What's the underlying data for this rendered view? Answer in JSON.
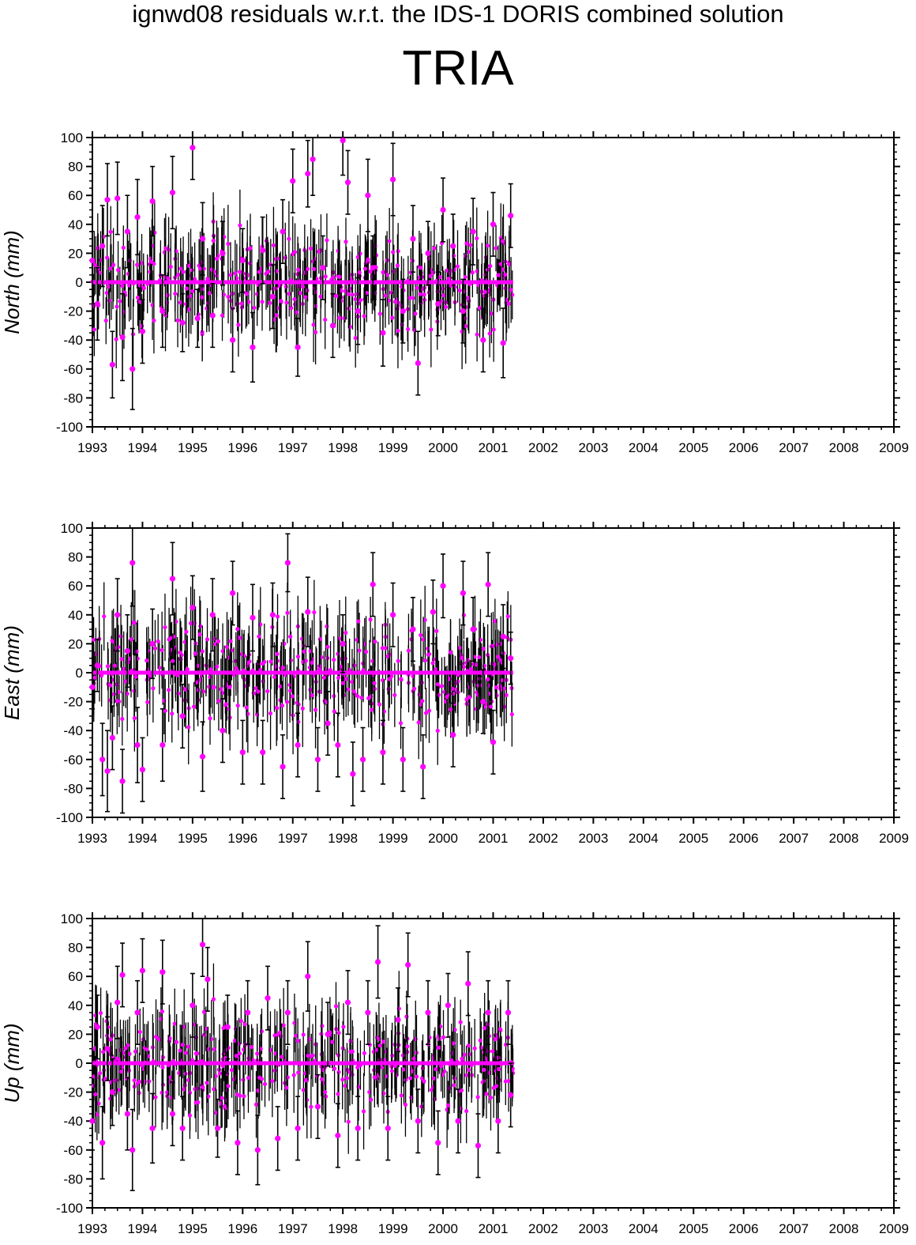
{
  "header": {
    "subtitle": "ignwd08 residuals w.r.t. the IDS-1 DORIS combined solution",
    "station": "TRIA"
  },
  "colors": {
    "marker": "#ff00ff",
    "errorbar": "#000000",
    "axis": "#000000"
  },
  "chart_data": [
    {
      "type": "scatter",
      "ylabel": "North (mm)",
      "xlim": [
        1993,
        2009
      ],
      "ylim": [
        -100,
        100
      ],
      "xticks": [
        "1993",
        "1994",
        "1995",
        "1996",
        "1997",
        "1998",
        "1999",
        "2000",
        "2001",
        "2002",
        "2003",
        "2004",
        "2005",
        "2006",
        "2007",
        "2008",
        "2009"
      ],
      "yticks": [
        "100",
        "80",
        "60",
        "40",
        "20",
        "0",
        "-20",
        "-40",
        "-60",
        "-80",
        "-100"
      ],
      "zero_line": [
        1993.0,
        2001.4
      ],
      "series": [
        {
          "x": [
            1993.0,
            1993.1,
            1993.2,
            1993.3,
            1993.4,
            1993.5,
            1993.6,
            1993.7,
            1993.8,
            1993.9,
            1994.0,
            1994.2,
            1994.4,
            1994.6,
            1994.8,
            1995.0,
            1995.1,
            1995.2,
            1995.4,
            1995.6,
            1995.8,
            1996.0,
            1996.2,
            1996.4,
            1996.6,
            1996.8,
            1997.0,
            1997.1,
            1997.3,
            1997.4,
            1997.6,
            1997.8,
            1998.0,
            1998.1,
            1998.3,
            1998.5,
            1998.6,
            1998.8,
            1999.0,
            1999.2,
            1999.4,
            1999.5,
            1999.7,
            1999.9,
            2000.0,
            2000.2,
            2000.4,
            2000.6,
            2000.8,
            2001.0,
            2001.2,
            2001.35
          ],
          "y": [
            15,
            -15,
            25,
            57,
            -57,
            58,
            -38,
            35,
            -60,
            45,
            -34,
            56,
            -20,
            62,
            -28,
            93,
            -25,
            30,
            -23,
            20,
            -40,
            15,
            -45,
            22,
            -10,
            35,
            70,
            -45,
            75,
            85,
            10,
            -30,
            98,
            69,
            -20,
            60,
            10,
            -35,
            71,
            -20,
            30,
            -56,
            20,
            -15,
            50,
            25,
            -20,
            35,
            -40,
            40,
            -42,
            46
          ],
          "err": [
            20,
            25,
            28,
            25,
            23,
            25,
            30,
            25,
            28,
            26,
            22,
            24,
            25,
            25,
            20,
            22,
            20,
            25,
            22,
            22,
            22,
            22,
            24,
            23,
            22,
            22,
            22,
            20,
            23,
            25,
            22,
            22,
            24,
            22,
            23,
            25,
            22,
            23,
            25,
            22,
            23,
            22,
            22,
            22,
            22,
            22,
            22,
            23,
            22,
            22,
            24,
            22
          ]
        }
      ]
    },
    {
      "type": "scatter",
      "ylabel": "East (mm)",
      "xlim": [
        1993,
        2009
      ],
      "ylim": [
        -100,
        100
      ],
      "xticks": [
        "1993",
        "1994",
        "1995",
        "1996",
        "1997",
        "1998",
        "1999",
        "2000",
        "2001",
        "2002",
        "2003",
        "2004",
        "2005",
        "2006",
        "2007",
        "2008",
        "2009"
      ],
      "yticks": [
        "100",
        "80",
        "60",
        "40",
        "20",
        "0",
        "-20",
        "-40",
        "-60",
        "-80",
        "-100"
      ],
      "zero_line": [
        1993.0,
        2001.4
      ],
      "series": [
        {
          "x": [
            1993.0,
            1993.1,
            1993.2,
            1993.3,
            1993.4,
            1993.5,
            1993.6,
            1993.7,
            1993.8,
            1993.9,
            1994.0,
            1994.2,
            1994.4,
            1994.6,
            1994.8,
            1995.0,
            1995.2,
            1995.4,
            1995.6,
            1995.8,
            1996.0,
            1996.2,
            1996.4,
            1996.6,
            1996.8,
            1996.9,
            1997.1,
            1997.3,
            1997.5,
            1997.7,
            1997.9,
            1998.0,
            1998.2,
            1998.4,
            1998.6,
            1998.8,
            1999.0,
            1999.2,
            1999.4,
            1999.6,
            1999.8,
            2000.0,
            2000.2,
            2000.4,
            2000.6,
            2000.8,
            2000.9,
            2001.0,
            2001.2,
            2001.35
          ],
          "y": [
            -10,
            5,
            -60,
            -68,
            -45,
            40,
            -75,
            15,
            76,
            -50,
            -67,
            20,
            -50,
            65,
            -30,
            45,
            -58,
            40,
            -40,
            55,
            -55,
            38,
            -55,
            40,
            -65,
            76,
            -50,
            42,
            -60,
            -35,
            -50,
            20,
            -70,
            -60,
            61,
            -55,
            40,
            -60,
            30,
            -65,
            42,
            60,
            -43,
            55,
            30,
            -20,
            61,
            -48,
            25,
            10
          ],
          "err": [
            15,
            18,
            25,
            28,
            22,
            25,
            22,
            25,
            30,
            26,
            22,
            24,
            25,
            25,
            22,
            22,
            24,
            25,
            22,
            22,
            22,
            23,
            22,
            22,
            22,
            20,
            22,
            24,
            22,
            22,
            22,
            20,
            22,
            22,
            22,
            22,
            22,
            22,
            22,
            22,
            22,
            22,
            22,
            22,
            22,
            22,
            22,
            22,
            22,
            18
          ]
        }
      ]
    },
    {
      "type": "scatter",
      "ylabel": "Up (mm)",
      "xlim": [
        1993,
        2009
      ],
      "ylim": [
        -100,
        100
      ],
      "xticks": [
        "1993",
        "1994",
        "1995",
        "1996",
        "1997",
        "1998",
        "1999",
        "2000",
        "2001",
        "2002",
        "2003",
        "2004",
        "2005",
        "2006",
        "2007",
        "2008",
        "2009"
      ],
      "yticks": [
        "100",
        "80",
        "60",
        "40",
        "20",
        "0",
        "-20",
        "-40",
        "-60",
        "-80",
        "-100"
      ],
      "zero_line": [
        1993.0,
        2001.4
      ],
      "series": [
        {
          "x": [
            1993.0,
            1993.1,
            1993.2,
            1993.3,
            1993.4,
            1993.5,
            1993.6,
            1993.7,
            1993.8,
            1993.9,
            1994.0,
            1994.2,
            1994.4,
            1994.6,
            1994.8,
            1995.0,
            1995.2,
            1995.3,
            1995.5,
            1995.7,
            1995.9,
            1996.1,
            1996.3,
            1996.5,
            1996.7,
            1996.9,
            1997.1,
            1997.3,
            1997.5,
            1997.7,
            1997.9,
            1998.1,
            1998.3,
            1998.5,
            1998.7,
            1998.9,
            1999.1,
            1999.3,
            1999.5,
            1999.7,
            1999.9,
            2000.1,
            2000.3,
            2000.5,
            2000.7,
            2000.9,
            2001.1,
            2001.3,
            2001.35
          ],
          "y": [
            -40,
            25,
            -55,
            10,
            -20,
            42,
            61,
            -35,
            -60,
            35,
            64,
            -45,
            63,
            -35,
            -45,
            40,
            82,
            58,
            -45,
            25,
            -55,
            35,
            -60,
            45,
            -52,
            35,
            -45,
            60,
            -30,
            20,
            -50,
            42,
            -45,
            35,
            70,
            -45,
            30,
            68,
            -40,
            35,
            -55,
            40,
            -40,
            55,
            -57,
            35,
            -40,
            35,
            -22
          ],
          "err": [
            20,
            22,
            25,
            22,
            23,
            25,
            22,
            25,
            28,
            22,
            22,
            24,
            22,
            22,
            22,
            22,
            22,
            22,
            20,
            22,
            22,
            22,
            24,
            22,
            22,
            22,
            22,
            24,
            22,
            22,
            22,
            22,
            22,
            22,
            25,
            22,
            22,
            22,
            22,
            22,
            22,
            22,
            22,
            22,
            22,
            22,
            22,
            22,
            22
          ]
        }
      ]
    }
  ]
}
